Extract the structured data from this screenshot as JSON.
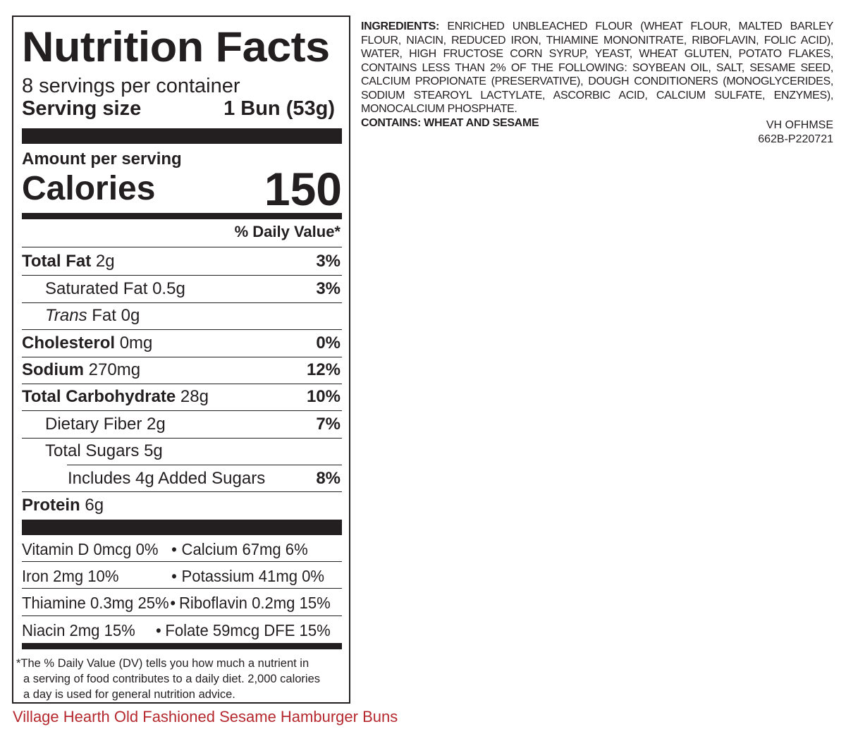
{
  "label": {
    "title": "Nutrition Facts",
    "servings_per_container": "8 servings per container",
    "serving_size_label": "Serving size",
    "serving_size_value": "1 Bun (53g)",
    "amount_per_serving": "Amount per serving",
    "calories_label": "Calories",
    "calories_value": "150",
    "daily_value_header": "% Daily Value*",
    "nutrients": [
      {
        "name": "Total Fat",
        "amount": " 2g",
        "pct": "3%"
      },
      {
        "name": "Saturated Fat 0.5g",
        "amount": "",
        "pct": "3%"
      },
      {
        "name": "Trans",
        "amount": " Fat 0g",
        "pct": ""
      },
      {
        "name": "Cholesterol",
        "amount": " 0mg",
        "pct": "0%"
      },
      {
        "name": "Sodium",
        "amount": " 270mg",
        "pct": "12%"
      },
      {
        "name": "Total Carbohydrate",
        "amount": " 28g",
        "pct": "10%"
      },
      {
        "name": "Dietary Fiber 2g",
        "amount": "",
        "pct": "7%"
      },
      {
        "name": "Total Sugars 5g",
        "amount": "",
        "pct": ""
      },
      {
        "name": "Includes 4g Added Sugars",
        "amount": "",
        "pct": "8%"
      },
      {
        "name": "Protein",
        "amount": " 6g",
        "pct": ""
      }
    ],
    "vitamins": [
      {
        "left": "Vitamin D 0mcg 0%",
        "right": "Calcium 67mg 6%"
      },
      {
        "left": "Iron 2mg 10%",
        "right": "Potassium 41mg 0%"
      },
      {
        "left": "Thiamine 0.3mg 25%",
        "right": "Riboflavin 0.2mg 15%"
      },
      {
        "left": "Niacin 2mg 15%",
        "right": "Folate 59mcg DFE 15%"
      }
    ],
    "bullet": "•",
    "footnote_1": "*The % Daily Value (DV) tells you how much a nutrient in",
    "footnote_2": "a serving of food contributes to a daily diet. 2,000 calories",
    "footnote_3": "a day is used for general nutrition advice."
  },
  "ingredients": {
    "heading": "INGREDIENTS:",
    "text": " ENRICHED UNBLEACHED FLOUR (WHEAT FLOUR, MALTED BARLEY FLOUR, NIACIN, REDUCED IRON, THIAMINE MONONITRATE, RIBOFLAVIN, FOLIC ACID), WATER, HIGH FRUCTOSE CORN SYRUP, YEAST, WHEAT GLUTEN, POTATO FLAKES, CONTAINS LESS THAN 2% OF THE FOLLOWING: SOYBEAN OIL, SALT, SESAME SEED, CALCIUM PROPIONATE (PRESERVATIVE), DOUGH CONDITIONERS (MONOGLYCERIDES, SODIUM STEAROYL LACTYLATE, ASCORBIC ACID, CALCIUM SULFATE, ENZYMES), MONOCALCIUM PHOSPHATE.",
    "contains": "CONTAINS: WHEAT AND SESAME"
  },
  "codes": {
    "line1": "VH OFHMSE",
    "line2": "662B-P220721"
  },
  "product_name": "Village Hearth Old Fashioned Sesame Hamburger Buns",
  "colors": {
    "ink": "#231f20",
    "product_red": "#b5282e"
  }
}
